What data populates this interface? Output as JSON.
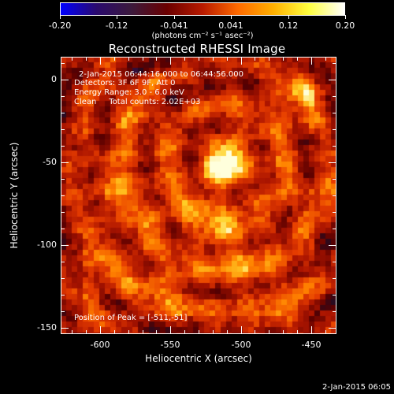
{
  "colorbar": {
    "gradient_stops": [
      "#0000ff",
      "#2a0a6e",
      "#3c1a3c",
      "#6b0000",
      "#b81a00",
      "#ff6a00",
      "#ffb000",
      "#ffff40",
      "#ffffff"
    ],
    "tick_labels": [
      "-0.20",
      "-0.12",
      "-0.041",
      "0.041",
      "0.12",
      "0.20"
    ],
    "units": "(photons cm⁻² s⁻¹ asec⁻²)"
  },
  "title": "Reconstructed RHESSI Image",
  "annotations": {
    "time_range": "2-Jan-2015 06:44:16.000 to 06:44:56.000",
    "detectors": "Detectors: 3F 6F 9F, Att 0",
    "energy_range": "Energy Range: 3.0 - 6.0 keV",
    "algorithm": "Clean     Total counts: 2.02E+03",
    "peak_position": "Position of Peak = [-511,-51]"
  },
  "axes": {
    "x_label": "Heliocentric X (arcsec)",
    "y_label": "Heliocentric Y (arcsec)",
    "x_ticks": [
      "-600",
      "-550",
      "-500",
      "-450"
    ],
    "y_ticks": [
      "0",
      "-50",
      "-100",
      "-150"
    ]
  },
  "footer_timestamp": "2-Jan-2015 06:05",
  "image": {
    "peak_x_arcsec": -511,
    "peak_y_arcsec": -51,
    "colormap": "thermal"
  }
}
